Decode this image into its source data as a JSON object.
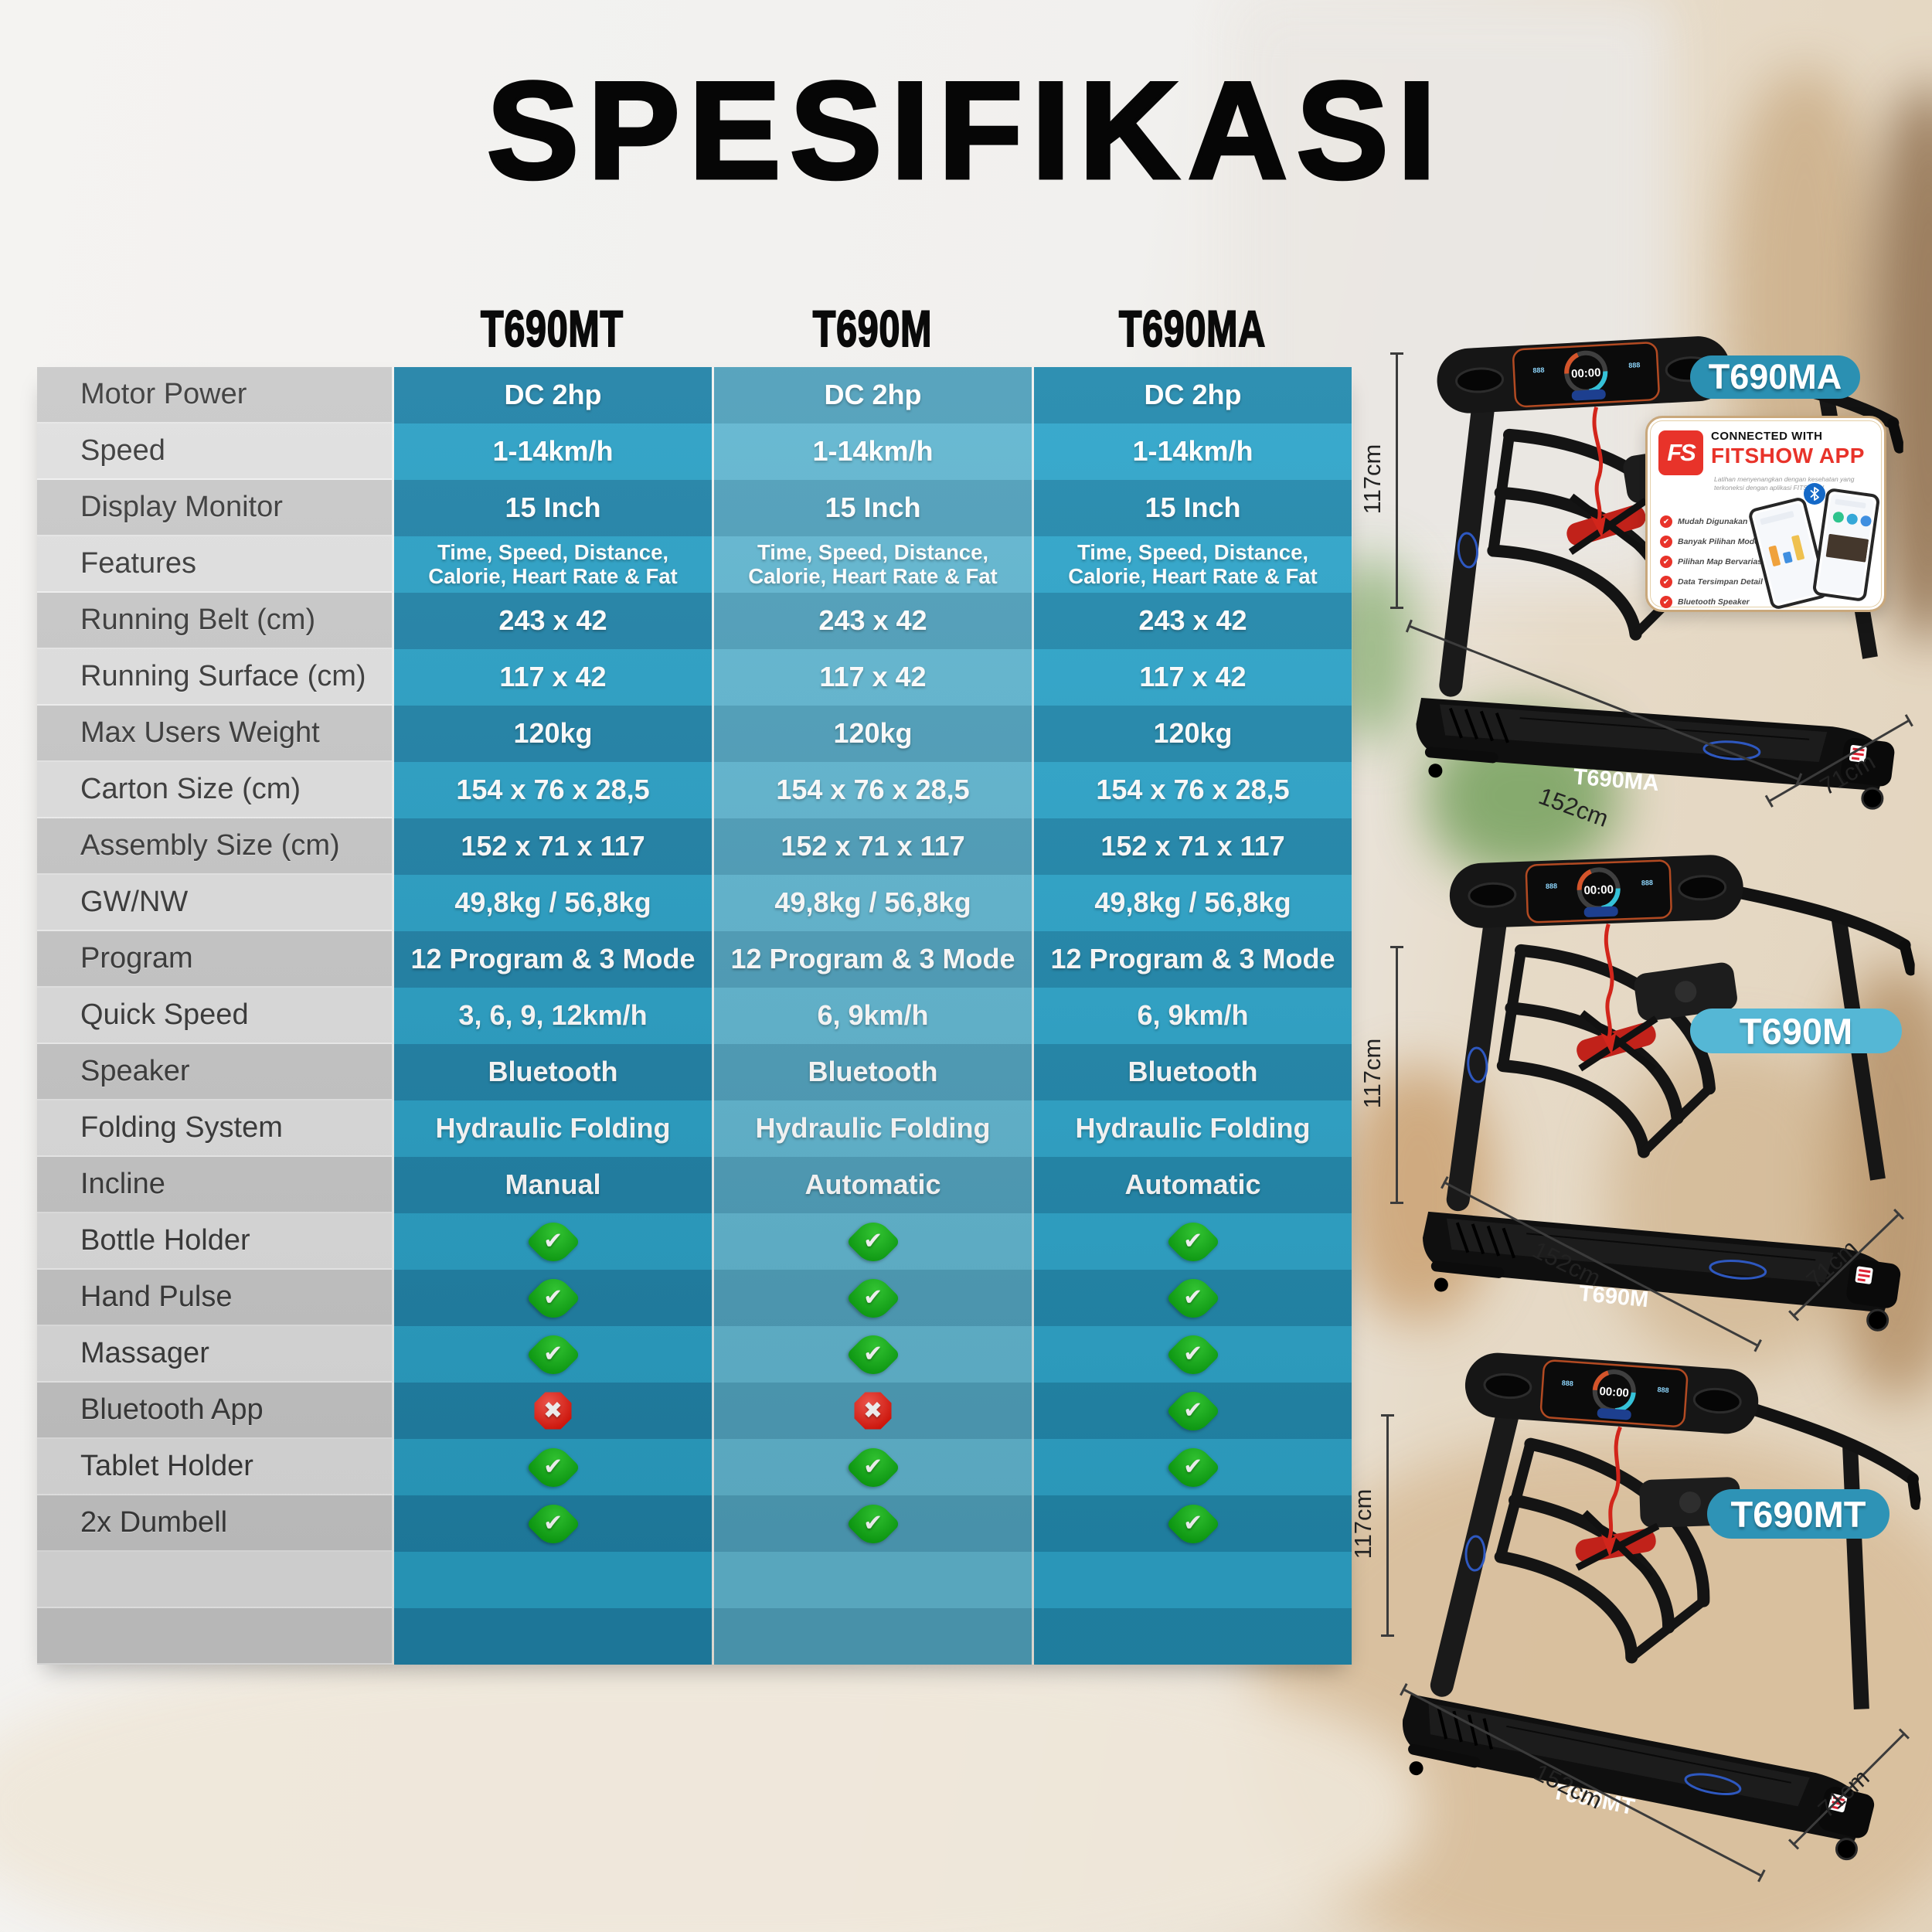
{
  "title": "SPESIFIKASI",
  "table": {
    "columns": [
      "T690MT",
      "T690M",
      "T690MA"
    ],
    "rows": [
      {
        "label": "Motor Power",
        "values": [
          "DC 2hp",
          "DC 2hp",
          "DC 2hp"
        ]
      },
      {
        "label": "Speed",
        "values": [
          "1-14km/h",
          "1-14km/h",
          "1-14km/h"
        ]
      },
      {
        "label": "Display Monitor",
        "values": [
          "15 Inch",
          "15 Inch",
          "15 Inch"
        ]
      },
      {
        "label": "Features",
        "values": [
          "Time, Speed, Distance,\nCalorie, Heart Rate & Fat",
          "Time, Speed, Distance,\nCalorie, Heart Rate & Fat",
          "Time, Speed, Distance,\nCalorie, Heart Rate & Fat"
        ]
      },
      {
        "label": "Running Belt (cm)",
        "values": [
          "243 x 42",
          "243 x 42",
          "243 x 42"
        ]
      },
      {
        "label": "Running Surface (cm)",
        "values": [
          "117 x 42",
          "117 x 42",
          "117 x 42"
        ]
      },
      {
        "label": "Max Users Weight",
        "values": [
          "120kg",
          "120kg",
          "120kg"
        ]
      },
      {
        "label": "Carton Size (cm)",
        "values": [
          "154 x 76 x 28,5",
          "154 x 76 x 28,5",
          "154 x 76 x 28,5"
        ]
      },
      {
        "label": "Assembly Size (cm)",
        "values": [
          "152 x 71 x 117",
          "152 x 71 x 117",
          "152 x 71 x 117"
        ]
      },
      {
        "label": "GW/NW",
        "values": [
          "49,8kg / 56,8kg",
          "49,8kg / 56,8kg",
          "49,8kg / 56,8kg"
        ]
      },
      {
        "label": "Program",
        "values": [
          "12 Program & 3 Mode",
          "12 Program & 3 Mode",
          "12 Program & 3 Mode"
        ]
      },
      {
        "label": "Quick Speed",
        "values": [
          "3, 6, 9, 12km/h",
          "6, 9km/h",
          "6, 9km/h"
        ]
      },
      {
        "label": "Speaker",
        "values": [
          "Bluetooth",
          "Bluetooth",
          "Bluetooth"
        ]
      },
      {
        "label": "Folding System",
        "values": [
          "Hydraulic Folding",
          "Hydraulic Folding",
          "Hydraulic Folding"
        ]
      },
      {
        "label": "Incline",
        "values": [
          "Manual",
          "Automatic",
          "Automatic"
        ]
      },
      {
        "label": "Bottle Holder",
        "values": [
          "check",
          "check",
          "check"
        ]
      },
      {
        "label": "Hand Pulse",
        "values": [
          "check",
          "check",
          "check"
        ]
      },
      {
        "label": "Massager",
        "values": [
          "check",
          "check",
          "check"
        ]
      },
      {
        "label": "Bluetooth App",
        "values": [
          "cross",
          "cross",
          "check"
        ]
      },
      {
        "label": "Tablet Holder",
        "values": [
          "check",
          "check",
          "check"
        ]
      },
      {
        "label": "2x Dumbell",
        "values": [
          "check",
          "check",
          "check"
        ]
      }
    ],
    "empty_trailing_rows": 2
  },
  "products": [
    {
      "badge": "T690MA",
      "deck_label": "T690MA",
      "height": "117cm",
      "length": "152cm",
      "width": "71cm"
    },
    {
      "badge": "T690M",
      "deck_label": "T690M",
      "height": "117cm",
      "length": "152cm",
      "width": "71cm"
    },
    {
      "badge": "T690MT",
      "deck_label": "T690MT",
      "height": "117cm",
      "length": "152cm",
      "width": "71cm"
    }
  ],
  "fitshow": {
    "logo": "FS",
    "connected_with": "CONNECTED WITH",
    "app_name": "FITSHOW APP",
    "tagline_line1": "Latihan menyenangkan dengan kesehatan yang",
    "tagline_line2": "terkoneksi dengan aplikasi FITSHOW",
    "features": [
      "Mudah Digunakan",
      "Banyak Pilihan Mode Latihan",
      "Pilihan Map Bervariasi",
      "Data Tersimpan Detail",
      "Bluetooth Speaker"
    ]
  },
  "colors": {
    "column_t690mt": "#2082a7",
    "column_t690m": "#4f9fba",
    "column_t690ma": "#2289ad",
    "label_column_gray": "#c9c9c9",
    "check_green": "#14b219",
    "cross_red": "#e32117",
    "badge_teal": "#2b90b2",
    "badge_light_blue": "#55b7d5",
    "fitshow_red": "#e8332a"
  }
}
